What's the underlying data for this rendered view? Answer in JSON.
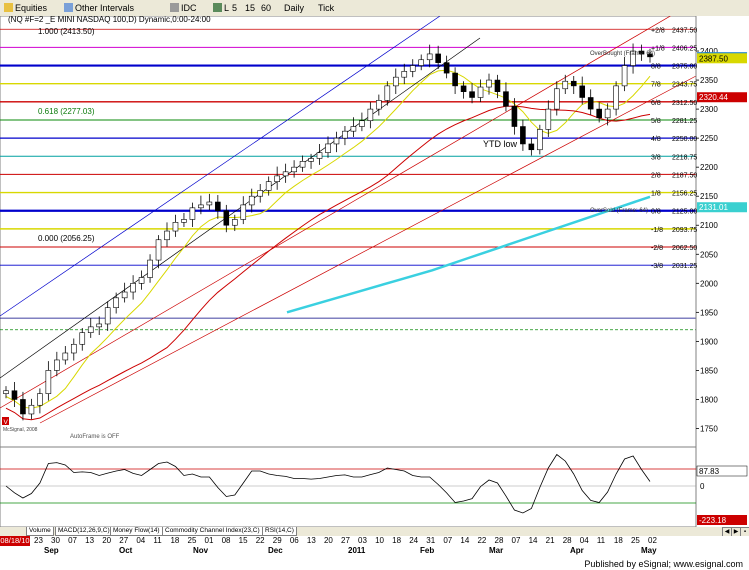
{
  "toolbar": {
    "tools": [
      {
        "name": "equities-tool",
        "label": "Equities",
        "icon": "folder-icon"
      },
      {
        "name": "other-intervals-tool",
        "label": "Other Intervals",
        "icon": "clock-icon"
      },
      {
        "name": "idc-tool",
        "label": "IDC",
        "icon": "gear-icon"
      },
      {
        "name": "interval-l",
        "label": "L",
        "icon": "chart-icon"
      },
      {
        "name": "interval-5",
        "label": "5",
        "icon": ""
      },
      {
        "name": "interval-15",
        "label": "15",
        "icon": ""
      },
      {
        "name": "interval-60",
        "label": "60",
        "icon": ""
      },
      {
        "name": "interval-daily",
        "label": "Daily",
        "icon": ""
      },
      {
        "name": "interval-tick",
        "label": "Tick",
        "icon": ""
      }
    ]
  },
  "chart": {
    "header": "(NQ #F=2 _E MINI NASDAQ 100,D) Dynamic,0:00-24:00",
    "fib_label_top": "1.000 (2413.50)",
    "fib_label_mid": "0.618 (2277.03)",
    "fib_label_low": "0.000 (2056.25)",
    "annotation_ytd": "YTD low",
    "annotation_overbought": "OverBought (Frame: 64)",
    "annotation_oversold": "OverSold (Frame: 64)",
    "annotation_autoframe": "AutoFrame is OFF",
    "copyright": "McSignal, 2008",
    "badge_v": "V",
    "murrey_levels": [
      {
        "label": "+2/8",
        "value": "2437.50"
      },
      {
        "label": "+1/8",
        "value": "2406.25"
      },
      {
        "label": "8/8",
        "value": "2375.00"
      },
      {
        "label": "7/8",
        "value": "2343.75"
      },
      {
        "label": "6/8",
        "value": "2312.50"
      },
      {
        "label": "5/8",
        "value": "2281.25"
      },
      {
        "label": "4/8",
        "value": "2250.00"
      },
      {
        "label": "3/8",
        "value": "2218.75"
      },
      {
        "label": "2/8",
        "value": "2187.50"
      },
      {
        "label": "1/8",
        "value": "2156.25"
      },
      {
        "label": "0/8",
        "value": "2125.00"
      },
      {
        "label": "-1/8",
        "value": "2093.75"
      },
      {
        "label": "-2/8",
        "value": "2062.50"
      },
      {
        "label": "-3/8",
        "value": "2031.25"
      }
    ],
    "price_badges": [
      {
        "value": "2389.50",
        "color": "#2a8bd0"
      },
      {
        "value": "2387.50",
        "color": "#d8d800"
      },
      {
        "value": "2320.44",
        "color": "#cc0000"
      },
      {
        "value": "2131.01",
        "color": "#3ad0d0"
      }
    ],
    "y_ticks": [
      "2400",
      "2350",
      "2300",
      "2250",
      "2200",
      "2150",
      "2100",
      "2050",
      "2000",
      "1950",
      "1900",
      "1850",
      "1800",
      "1750"
    ]
  },
  "oscillator": {
    "y_ticks": [
      "100",
      "0"
    ],
    "badges": [
      {
        "value": "87.83",
        "color": "#000000"
      },
      {
        "value": "-223.18",
        "color": "#cc0000"
      }
    ]
  },
  "study_tabs": [
    "Volume",
    "MACD(12,26,9,C)",
    "Money Flow(14)",
    "Commodity Channel Index(23,C)",
    "RSI(14,C)"
  ],
  "date_axis": {
    "badge": "08/18/10",
    "days": [
      "23",
      "30",
      "07",
      "13",
      "20",
      "27",
      "04",
      "11",
      "18",
      "25",
      "01",
      "08",
      "15",
      "22",
      "29",
      "06",
      "13",
      "20",
      "27",
      "03",
      "10",
      "18",
      "24",
      "31",
      "07",
      "14",
      "22",
      "28",
      "07",
      "14",
      "21",
      "28",
      "04",
      "11",
      "18",
      "25",
      "02"
    ],
    "months": [
      {
        "label": "Sep"
      },
      {
        "label": "Oct"
      },
      {
        "label": "Nov"
      },
      {
        "label": "Dec"
      },
      {
        "label": "2011"
      },
      {
        "label": "Feb"
      },
      {
        "label": "Mar"
      },
      {
        "label": "Apr"
      },
      {
        "label": "May"
      }
    ]
  },
  "footer": "Published by eSignal; www.esignal.com",
  "chart_data": {
    "type": "candlestick",
    "title": "(NQ #F=2 _E MINI NASDAQ 100,D) Dynamic,0:00-24:00",
    "x_start": "2010-08-18",
    "x_end": "2011-05-03",
    "ylim": [
      1725,
      2450
    ],
    "series": [
      {
        "name": "close",
        "values": [
          1815,
          1800,
          1775,
          1790,
          1810,
          1850,
          1868,
          1880,
          1895,
          1915,
          1925,
          1930,
          1958,
          1975,
          1985,
          2000,
          2010,
          2040,
          2075,
          2090,
          2105,
          2110,
          2130,
          2135,
          2140,
          2125,
          2100,
          2110,
          2135,
          2150,
          2160,
          2175,
          2185,
          2192,
          2200,
          2210,
          2215,
          2225,
          2240,
          2250,
          2262,
          2270,
          2280,
          2300,
          2315,
          2340,
          2355,
          2365,
          2375,
          2385,
          2395,
          2380,
          2362,
          2340,
          2330,
          2320,
          2338,
          2350,
          2330,
          2305,
          2270,
          2240,
          2230,
          2265,
          2300,
          2335,
          2348,
          2340,
          2320,
          2300,
          2285,
          2300,
          2340,
          2375,
          2400,
          2395,
          2390
        ]
      },
      {
        "name": "murrey-math-levels",
        "values": [
          2437.5,
          2406.25,
          2375,
          2343.75,
          2312.5,
          2281.25,
          2250,
          2218.75,
          2187.5,
          2156.25,
          2125,
          2093.75,
          2062.5,
          2031.25
        ]
      }
    ],
    "fibonacci": [
      {
        "level": "1.000",
        "value": 2413.5
      },
      {
        "level": "0.618",
        "value": 2277.03
      },
      {
        "level": "0.000",
        "value": 2056.25
      }
    ],
    "ma_last": [
      2320.44,
      2131.01
    ]
  }
}
